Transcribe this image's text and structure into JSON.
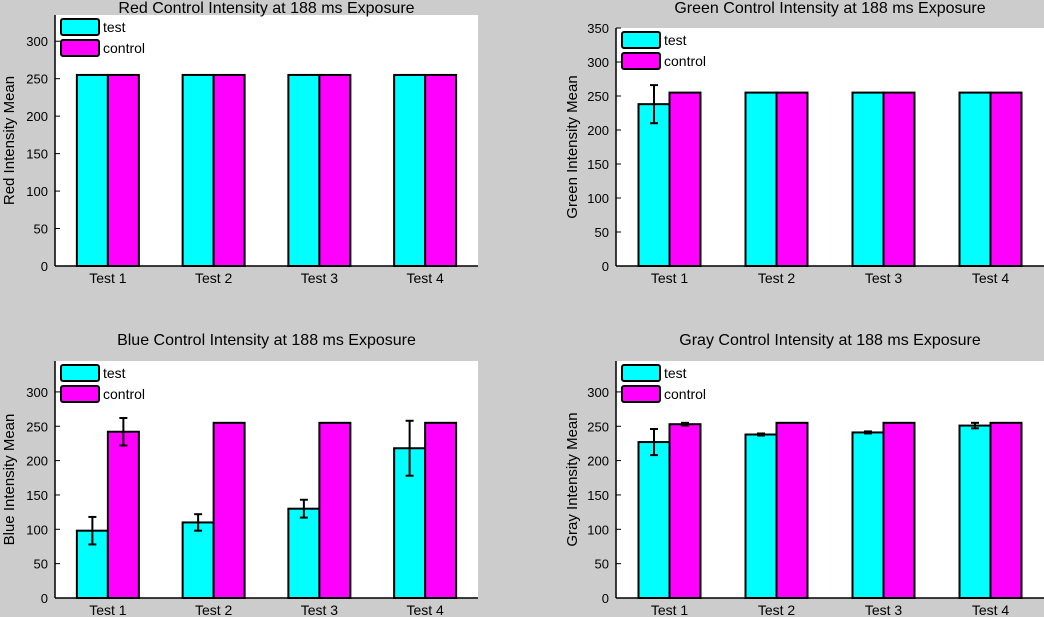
{
  "colors": {
    "test": "#00ffff",
    "control": "#ff00ff",
    "figure_bg": "#cccccc",
    "axes_bg": "#ffffff"
  },
  "chart_data": [
    {
      "type": "bar",
      "title": "Red Control Intensity at 188 ms Exposure",
      "xlabel": "",
      "ylabel": "Red Intensity Mean",
      "ylim": [
        0,
        335
      ],
      "yticks": [
        0,
        50,
        100,
        150,
        200,
        250,
        300
      ],
      "categories": [
        "Test 1",
        "Test 2",
        "Test 3",
        "Test 4"
      ],
      "legend": "top-left",
      "series": [
        {
          "name": "test",
          "values": [
            255,
            255,
            255,
            255
          ],
          "errors": [
            0,
            0,
            0,
            0
          ]
        },
        {
          "name": "control",
          "values": [
            255,
            255,
            255,
            255
          ],
          "errors": [
            0,
            0,
            0,
            0
          ]
        }
      ]
    },
    {
      "type": "bar",
      "title": "Green Control Intensity at 188 ms Exposure",
      "xlabel": "",
      "ylabel": "Green Intensity Mean",
      "ylim": [
        0,
        350
      ],
      "yticks": [
        0,
        50,
        100,
        150,
        200,
        250,
        300,
        350
      ],
      "categories": [
        "Test 1",
        "Test 2",
        "Test 3",
        "Test 4"
      ],
      "legend": "top-left",
      "series": [
        {
          "name": "test",
          "values": [
            238,
            255,
            255,
            255
          ],
          "errors": [
            28,
            0,
            0,
            0
          ]
        },
        {
          "name": "control",
          "values": [
            255,
            255,
            255,
            255
          ],
          "errors": [
            0,
            0,
            0,
            0
          ]
        }
      ]
    },
    {
      "type": "bar",
      "title": "Blue Control Intensity at 188 ms Exposure",
      "xlabel": "",
      "ylabel": "Blue Intensity Mean",
      "ylim": [
        0,
        345
      ],
      "yticks": [
        0,
        50,
        100,
        150,
        200,
        250,
        300
      ],
      "categories": [
        "Test 1",
        "Test 2",
        "Test 3",
        "Test 4"
      ],
      "legend": "top-left",
      "series": [
        {
          "name": "test",
          "values": [
            98,
            110,
            130,
            218
          ],
          "errors": [
            20,
            12,
            13,
            40
          ]
        },
        {
          "name": "control",
          "values": [
            242,
            255,
            255,
            255
          ],
          "errors": [
            20,
            0,
            0,
            0
          ]
        }
      ]
    },
    {
      "type": "bar",
      "title": "Gray Control Intensity at 188 ms Exposure",
      "xlabel": "",
      "ylabel": "Gray Intensity Mean",
      "ylim": [
        0,
        345
      ],
      "yticks": [
        0,
        50,
        100,
        150,
        200,
        250,
        300
      ],
      "categories": [
        "Test 1",
        "Test 2",
        "Test 3",
        "Test 4"
      ],
      "legend": "top-left",
      "series": [
        {
          "name": "test",
          "values": [
            227,
            238,
            241,
            251
          ],
          "errors": [
            19,
            1.5,
            1.5,
            4
          ]
        },
        {
          "name": "control",
          "values": [
            253,
            255,
            255,
            255
          ],
          "errors": [
            2,
            0,
            0,
            0
          ]
        }
      ]
    }
  ]
}
